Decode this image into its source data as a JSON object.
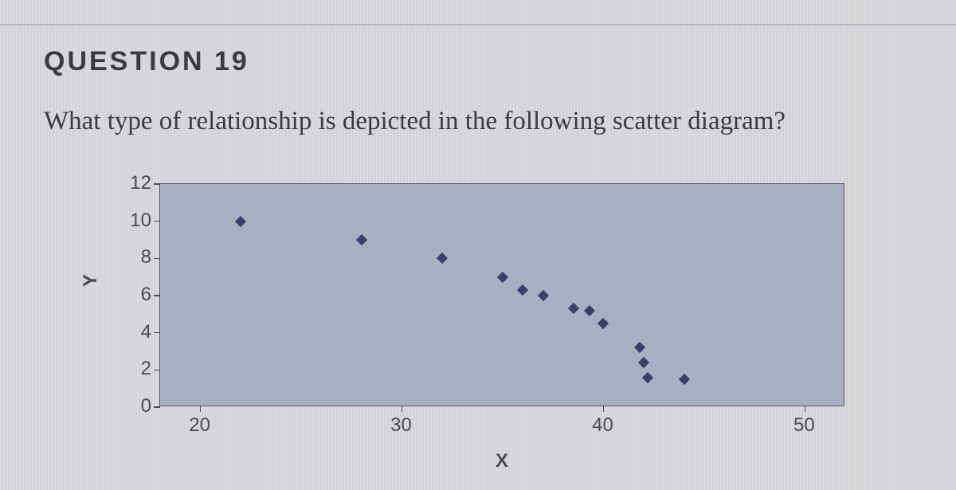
{
  "question": {
    "header": "QUESTION 19",
    "text": "What type of relationship is depicted in the following scatter diagram?"
  },
  "chart": {
    "type": "scatter",
    "xlabel": "X",
    "ylabel": "Y",
    "xlim": [
      18,
      52
    ],
    "ylim": [
      0,
      12
    ],
    "xticks": [
      20,
      30,
      40,
      50
    ],
    "yticks": [
      0,
      2,
      4,
      6,
      8,
      10,
      12
    ],
    "plot_bg": "#a9aec2",
    "axis_color": "#5a5a62",
    "tick_font_size": 24,
    "label_font_size": 24,
    "marker_color": "#3a3f6a",
    "marker_size": 10,
    "marker_shape": "diamond",
    "points": [
      {
        "x": 22,
        "y": 10
      },
      {
        "x": 28,
        "y": 9
      },
      {
        "x": 32,
        "y": 8
      },
      {
        "x": 35,
        "y": 7
      },
      {
        "x": 36,
        "y": 6.3
      },
      {
        "x": 37,
        "y": 6
      },
      {
        "x": 38.5,
        "y": 5.3
      },
      {
        "x": 39.3,
        "y": 5.2
      },
      {
        "x": 40,
        "y": 4.5
      },
      {
        "x": 41.8,
        "y": 3.2
      },
      {
        "x": 42,
        "y": 2.4
      },
      {
        "x": 42.2,
        "y": 1.6
      },
      {
        "x": 44,
        "y": 1.5
      }
    ]
  }
}
